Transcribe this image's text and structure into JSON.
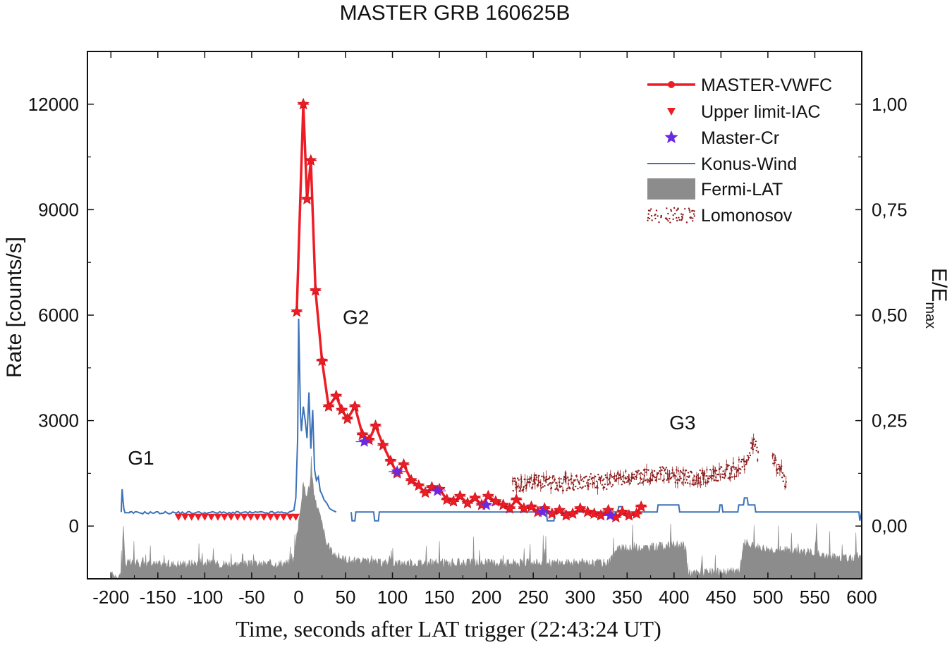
{
  "chart_data": {
    "type": "line",
    "title": "MASTER GRB 160625B",
    "xlabel": "Time, seconds after LAT trigger (22:43:24 UT)",
    "ylabel": "Rate [counts/s]",
    "y2label_main": "E/E",
    "y2label_sub": "max",
    "xlim": [
      -225,
      600
    ],
    "ylim": [
      -1500,
      13500
    ],
    "y2lim": [
      -0.125,
      1.125
    ],
    "xticks": [
      "-200",
      "-150",
      "-100",
      "-50",
      "0",
      "50",
      "100",
      "150",
      "200",
      "250",
      "300",
      "350",
      "400",
      "450",
      "500",
      "550",
      "600"
    ],
    "yticks": [
      "0",
      "3000",
      "6000",
      "9000",
      "12000"
    ],
    "y2ticks": [
      "0,00",
      "0,25",
      "0,50",
      "0,75",
      "1,00"
    ],
    "annotations": [
      {
        "text": "G1",
        "x": -182,
        "y": 1750
      },
      {
        "text": "G2",
        "x": 47,
        "y": 5750
      },
      {
        "text": "G3",
        "x": 395,
        "y": 2750
      }
    ],
    "legend_position": "top-right",
    "legend": [
      "MASTER-VWFC",
      "Upper limit-IAC",
      "Master-Cr",
      "Konus-Wind",
      "Fermi-LAT",
      "Lomonosov"
    ],
    "colors": {
      "master": "#ee1c25",
      "upper": "#ee1c25",
      "crystal": "#6a2ae0",
      "konus": "#3d72b8",
      "fermi": "#8c8c8c",
      "lomonosov": "#8b1a1a"
    },
    "series": [
      {
        "name": "MASTER-VWFC",
        "x": [
          -2,
          5,
          9,
          13,
          18,
          25,
          32,
          40,
          46,
          52,
          60,
          68,
          75,
          82,
          90,
          98,
          105,
          112,
          120,
          128,
          135,
          142,
          150,
          158,
          165,
          172,
          180,
          188,
          195,
          202,
          210,
          218,
          225,
          232,
          240,
          248,
          255,
          262,
          270,
          278,
          285,
          292,
          300,
          308,
          315,
          322,
          330,
          338,
          345,
          352,
          360,
          365
        ],
        "y": [
          6100,
          12000,
          9300,
          10400,
          6700,
          4700,
          3400,
          3700,
          3300,
          3050,
          3400,
          2600,
          2450,
          2850,
          2300,
          1850,
          1500,
          1750,
          1300,
          1150,
          950,
          1100,
          1050,
          750,
          700,
          850,
          650,
          800,
          600,
          850,
          700,
          600,
          500,
          750,
          500,
          550,
          400,
          500,
          350,
          450,
          300,
          350,
          500,
          400,
          350,
          300,
          450,
          250,
          400,
          300,
          350,
          550
        ]
      },
      {
        "name": "Upper limit-IAC",
        "x": [
          -128,
          -121,
          -114,
          -107,
          -100,
          -93,
          -86,
          -79,
          -72,
          -65,
          -58,
          -51,
          -44,
          -37,
          -30,
          -23,
          -16,
          -9,
          -3
        ],
        "y": [
          250,
          250,
          250,
          250,
          250,
          250,
          250,
          250,
          250,
          250,
          250,
          250,
          250,
          250,
          250,
          250,
          250,
          250,
          250
        ]
      },
      {
        "name": "Master-Cr",
        "x": [
          70,
          105,
          148,
          200,
          260,
          332
        ],
        "y": [
          2400,
          1550,
          1000,
          600,
          400,
          300
        ]
      },
      {
        "name": "Konus-Wind",
        "x": [
          -189,
          -188,
          -187,
          -186,
          -185,
          -180,
          -100,
          -10,
          -5,
          -3,
          -1,
          0,
          2,
          3,
          5,
          7,
          9,
          11,
          13,
          15,
          17,
          19,
          21,
          23,
          25,
          27,
          30,
          33,
          36,
          40,
          56,
          57,
          60,
          61,
          80,
          81,
          85,
          86,
          264,
          265,
          272,
          273,
          340,
          341,
          345,
          346,
          382,
          383,
          405,
          406,
          448,
          449,
          451,
          452,
          468,
          469,
          474,
          475,
          478,
          479,
          486,
          487,
          597,
          598,
          600
        ],
        "y": [
          400,
          1050,
          700,
          450,
          380,
          380,
          380,
          400,
          450,
          800,
          2500,
          5900,
          3200,
          2700,
          3400,
          3000,
          2500,
          3800,
          2200,
          3300,
          1600,
          1300,
          1400,
          1000,
          900,
          750,
          650,
          500,
          450,
          400,
          400,
          150,
          150,
          400,
          400,
          150,
          150,
          400,
          400,
          150,
          150,
          400,
          400,
          550,
          550,
          400,
          400,
          600,
          600,
          400,
          400,
          600,
          600,
          400,
          400,
          600,
          600,
          800,
          800,
          600,
          600,
          400,
          400,
          150,
          400
        ]
      },
      {
        "name": "Fermi-LAT",
        "x": [
          -200,
          -190,
          -188,
          -187,
          -185,
          -150,
          -100,
          -50,
          -10,
          -5,
          0,
          2,
          5,
          8,
          11,
          14,
          17,
          20,
          25,
          30,
          40,
          50,
          60,
          80,
          100,
          200,
          300,
          330,
          340,
          350,
          400,
          410,
          413,
          414,
          470,
          473,
          475,
          480,
          500,
          550,
          552,
          553,
          555,
          600
        ],
        "y": [
          -1450,
          -1450,
          -1400,
          200,
          -1100,
          -1150,
          -1100,
          -1150,
          -1100,
          -1000,
          0,
          500,
          1100,
          900,
          1000,
          1500,
          700,
          500,
          0,
          -600,
          -900,
          -1000,
          -1050,
          -1100,
          -1100,
          -1100,
          -1100,
          -1100,
          -700,
          -700,
          -600,
          -600,
          -700,
          -1400,
          -1350,
          -800,
          -500,
          -600,
          -700,
          -800,
          0,
          -800,
          -900,
          -1000
        ]
      },
      {
        "name": "Lomonosov",
        "x": [
          228,
          240,
          255,
          270,
          285,
          300,
          315,
          330,
          345,
          360,
          375,
          390,
          405,
          420,
          435,
          450,
          465,
          475,
          480,
          485,
          490
        ],
        "y": [
          1200,
          1150,
          1300,
          1250,
          1200,
          1250,
          1300,
          1250,
          1350,
          1400,
          1450,
          1500,
          1400,
          1350,
          1400,
          1500,
          1600,
          1800,
          2100,
          2400,
          2000
        ]
      },
      {
        "name": "Lomonosov",
        "x": [
          505,
          508,
          511,
          514,
          517,
          520
        ],
        "y": [
          1900,
          1800,
          1700,
          1600,
          1300,
          1200
        ]
      }
    ]
  }
}
